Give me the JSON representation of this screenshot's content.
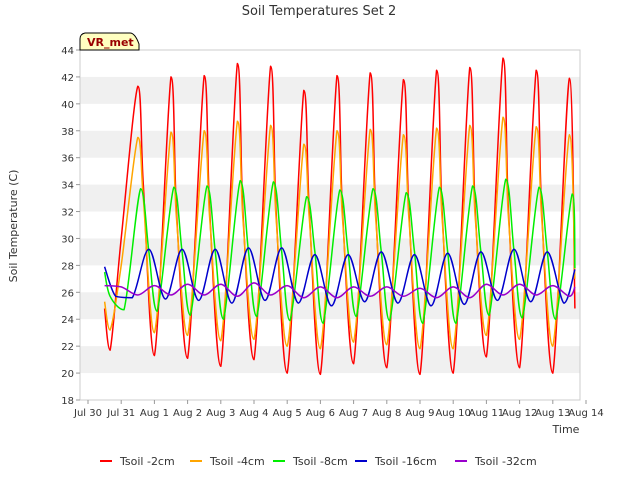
{
  "chart_data": {
    "type": "line",
    "title": "Soil Temperatures Set 2",
    "xlabel": "Time",
    "ylabel": "Soil Temperature (C)",
    "badge": "VR_met",
    "ylim": [
      18,
      44
    ],
    "yticks": [
      18,
      20,
      22,
      24,
      26,
      28,
      30,
      32,
      34,
      36,
      38,
      40,
      42,
      44
    ],
    "xlim": [
      "Jul 30",
      "Aug 14"
    ],
    "xticks": [
      "Jul 30",
      "Jul 31",
      "Aug 1",
      "Aug 2",
      "Aug 3",
      "Aug 4",
      "Aug 5",
      "Aug 6",
      "Aug 7",
      "Aug 8",
      "Aug 9",
      "Aug 10",
      "Aug 11",
      "Aug 12",
      "Aug 13",
      "Aug 14"
    ],
    "grid": "horizontal bands",
    "legend_position": "bottom",
    "series": [
      {
        "name": "Tsoil -2cm",
        "color": "#ff0000",
        "x": [
          "Jul 30 12:00",
          "Jul 30 16:00",
          "Jul 31 00:00",
          "Jul 31 12:00",
          "Jul 31 16:00",
          "Aug 1 00:00",
          "Aug 1 12:00",
          "Aug 1 16:00",
          "Aug 2 00:00",
          "Aug 2 12:00",
          "Aug 2 16:00",
          "Aug 3 00:00",
          "Aug 3 12:00",
          "Aug 3 16:00",
          "Aug 4 00:00",
          "Aug 4 12:00",
          "Aug 4 16:00",
          "Aug 5 00:00",
          "Aug 5 12:00",
          "Aug 5 16:00",
          "Aug 6 00:00",
          "Aug 6 12:00",
          "Aug 6 16:00",
          "Aug 7 00:00",
          "Aug 7 12:00",
          "Aug 7 16:00",
          "Aug 8 00:00",
          "Aug 8 12:00",
          "Aug 8 16:00",
          "Aug 9 00:00",
          "Aug 9 12:00",
          "Aug 9 16:00",
          "Aug 10 00:00",
          "Aug 10 12:00",
          "Aug 10 16:00",
          "Aug 11 00:00",
          "Aug 11 12:00",
          "Aug 11 16:00",
          "Aug 12 00:00",
          "Aug 12 12:00",
          "Aug 12 16:00",
          "Aug 13 00:00",
          "Aug 13 12:00",
          "Aug 13 16:00"
        ],
        "y": [
          24.8,
          21.7,
          30.0,
          41.3,
          34.0,
          21.3,
          42.0,
          32.0,
          21.1,
          42.1,
          32.0,
          20.5,
          43.0,
          32.0,
          21.0,
          42.8,
          32.0,
          20.0,
          41.0,
          32.0,
          19.9,
          42.1,
          32.0,
          20.7,
          42.3,
          32.0,
          20.4,
          41.8,
          32.0,
          19.9,
          42.5,
          32.0,
          20.0,
          42.7,
          32.0,
          21.2,
          43.4,
          32.0,
          20.4,
          42.5,
          32.0,
          20.0,
          41.9,
          24.8
        ]
      },
      {
        "name": "Tsoil -4cm",
        "color": "#ffa500",
        "x": [
          "Jul 30 12:00",
          "Jul 30 16:00",
          "Jul 31 00:00",
          "Jul 31 12:00",
          "Jul 31 16:00",
          "Aug 1 00:00",
          "Aug 1 12:00",
          "Aug 1 16:00",
          "Aug 2 00:00",
          "Aug 2 12:00",
          "Aug 2 16:00",
          "Aug 3 00:00",
          "Aug 3 12:00",
          "Aug 3 16:00",
          "Aug 4 00:00",
          "Aug 4 12:00",
          "Aug 4 16:00",
          "Aug 5 00:00",
          "Aug 5 12:00",
          "Aug 5 16:00",
          "Aug 6 00:00",
          "Aug 6 12:00",
          "Aug 6 16:00",
          "Aug 7 00:00",
          "Aug 7 12:00",
          "Aug 7 16:00",
          "Aug 8 00:00",
          "Aug 8 12:00",
          "Aug 8 16:00",
          "Aug 9 00:00",
          "Aug 9 12:00",
          "Aug 9 16:00",
          "Aug 10 00:00",
          "Aug 10 12:00",
          "Aug 10 16:00",
          "Aug 11 00:00",
          "Aug 11 12:00",
          "Aug 11 16:00",
          "Aug 12 00:00",
          "Aug 12 12:00",
          "Aug 12 16:00",
          "Aug 13 00:00",
          "Aug 13 12:00",
          "Aug 13 16:00"
        ],
        "y": [
          25.3,
          23.2,
          28.0,
          37.5,
          33.0,
          23.0,
          37.9,
          31.5,
          22.8,
          38.0,
          31.5,
          22.4,
          38.7,
          31.5,
          22.5,
          38.4,
          31.5,
          22.0,
          37.0,
          31.5,
          21.8,
          38.0,
          31.5,
          22.3,
          38.1,
          31.5,
          22.1,
          37.7,
          31.5,
          21.8,
          38.2,
          31.5,
          21.8,
          38.4,
          31.5,
          22.8,
          39.0,
          31.5,
          22.5,
          38.3,
          31.5,
          22.0,
          37.7,
          27.0
        ]
      },
      {
        "name": "Tsoil -8cm",
        "color": "#00ee00",
        "x": [
          "Jul 30 12:00",
          "Jul 30 16:00",
          "Jul 31 02:00",
          "Jul 31 14:00",
          "Jul 31 20:00",
          "Aug 1 02:00",
          "Aug 1 14:00",
          "Aug 1 20:00",
          "Aug 2 02:00",
          "Aug 2 14:00",
          "Aug 2 20:00",
          "Aug 3 02:00",
          "Aug 3 14:00",
          "Aug 3 20:00",
          "Aug 4 02:00",
          "Aug 4 14:00",
          "Aug 4 20:00",
          "Aug 5 02:00",
          "Aug 5 14:00",
          "Aug 5 20:00",
          "Aug 6 02:00",
          "Aug 6 14:00",
          "Aug 6 20:00",
          "Aug 7 02:00",
          "Aug 7 14:00",
          "Aug 7 20:00",
          "Aug 8 02:00",
          "Aug 8 14:00",
          "Aug 8 20:00",
          "Aug 9 02:00",
          "Aug 9 14:00",
          "Aug 9 20:00",
          "Aug 10 02:00",
          "Aug 10 14:00",
          "Aug 10 20:00",
          "Aug 11 02:00",
          "Aug 11 14:00",
          "Aug 11 20:00",
          "Aug 12 02:00",
          "Aug 12 14:00",
          "Aug 12 20:00",
          "Aug 13 02:00",
          "Aug 13 14:00",
          "Aug 13 16:00"
        ],
        "y": [
          27.5,
          25.7,
          24.7,
          33.7,
          29.0,
          24.6,
          33.8,
          29.0,
          24.3,
          33.9,
          29.0,
          24.0,
          34.3,
          29.0,
          24.2,
          34.2,
          29.0,
          23.9,
          33.1,
          29.0,
          23.7,
          33.6,
          29.0,
          24.2,
          33.7,
          29.0,
          23.9,
          33.4,
          29.0,
          23.7,
          33.8,
          29.0,
          23.7,
          33.9,
          29.0,
          24.3,
          34.4,
          29.0,
          24.1,
          33.8,
          29.0,
          24.0,
          33.3,
          27.8
        ]
      },
      {
        "name": "Tsoil -16cm",
        "color": "#0000cc",
        "x": [
          "Jul 30 12:00",
          "Jul 30 20:00",
          "Jul 31 08:00",
          "Jul 31 20:00",
          "Aug 1 08:00",
          "Aug 1 20:00",
          "Aug 2 08:00",
          "Aug 2 20:00",
          "Aug 3 08:00",
          "Aug 3 20:00",
          "Aug 4 08:00",
          "Aug 4 20:00",
          "Aug 5 08:00",
          "Aug 5 20:00",
          "Aug 6 08:00",
          "Aug 6 20:00",
          "Aug 7 08:00",
          "Aug 7 20:00",
          "Aug 8 08:00",
          "Aug 8 20:00",
          "Aug 9 08:00",
          "Aug 9 20:00",
          "Aug 10 08:00",
          "Aug 10 20:00",
          "Aug 11 08:00",
          "Aug 11 20:00",
          "Aug 12 08:00",
          "Aug 12 20:00",
          "Aug 13 08:00",
          "Aug 13 16:00"
        ],
        "y": [
          27.9,
          25.7,
          25.6,
          29.2,
          25.5,
          29.2,
          25.4,
          29.2,
          25.2,
          29.3,
          25.4,
          29.3,
          25.2,
          28.8,
          25.0,
          28.8,
          25.3,
          29.0,
          25.2,
          28.8,
          25.0,
          28.9,
          25.1,
          29.0,
          25.4,
          29.2,
          25.3,
          29.0,
          25.2,
          27.7
        ]
      },
      {
        "name": "Tsoil -32cm",
        "color": "#9900cc",
        "x": [
          "Jul 30 12:00",
          "Jul 31 00:00",
          "Jul 31 12:00",
          "Aug 1 00:00",
          "Aug 1 12:00",
          "Aug 2 00:00",
          "Aug 2 12:00",
          "Aug 3 00:00",
          "Aug 3 12:00",
          "Aug 4 00:00",
          "Aug 4 12:00",
          "Aug 5 00:00",
          "Aug 5 12:00",
          "Aug 6 00:00",
          "Aug 6 12:00",
          "Aug 7 00:00",
          "Aug 7 12:00",
          "Aug 8 00:00",
          "Aug 8 12:00",
          "Aug 9 00:00",
          "Aug 9 12:00",
          "Aug 10 00:00",
          "Aug 10 12:00",
          "Aug 11 00:00",
          "Aug 11 12:00",
          "Aug 12 00:00",
          "Aug 12 12:00",
          "Aug 13 00:00",
          "Aug 13 12:00",
          "Aug 13 16:00"
        ],
        "y": [
          26.5,
          26.4,
          25.8,
          26.5,
          25.8,
          26.6,
          25.8,
          26.6,
          25.7,
          26.7,
          25.8,
          26.5,
          25.6,
          26.4,
          25.6,
          26.4,
          25.7,
          26.4,
          25.7,
          26.3,
          25.6,
          26.4,
          25.6,
          26.6,
          25.8,
          26.6,
          25.8,
          26.5,
          25.7,
          26.4
        ]
      }
    ]
  }
}
